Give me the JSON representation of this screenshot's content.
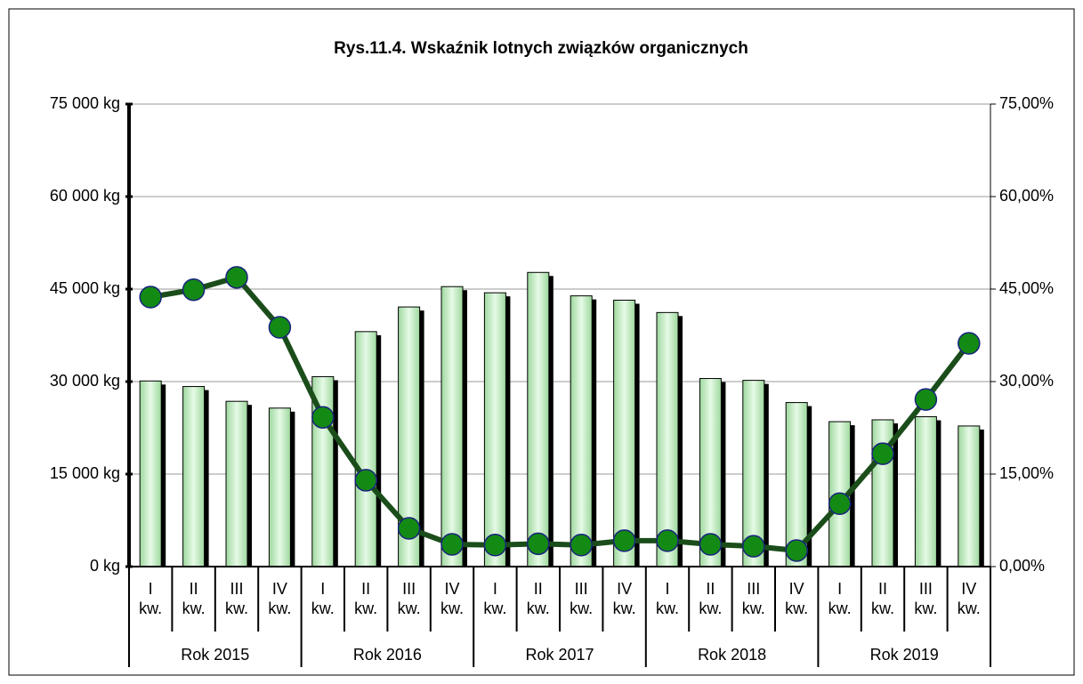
{
  "chart_data": {
    "type": "bar_line",
    "title": "Rys.11.4. Wskaźnik lotnych związków organicznych",
    "categories": [
      "I kw.",
      "II kw.",
      "III kw.",
      "IV kw.",
      "I kw.",
      "II kw.",
      "III kw.",
      "IV kw.",
      "I kw.",
      "II kw.",
      "III kw.",
      "IV kw.",
      "I kw.",
      "II kw.",
      "III kw.",
      "IV kw.",
      "I kw.",
      "II kw.",
      "III kw.",
      "IV kw."
    ],
    "groups": [
      "Rok 2015",
      "Rok 2016",
      "Rok 2017",
      "Rok 2018",
      "Rok 2019"
    ],
    "series": [
      {
        "type": "bar",
        "color": "#c8f0c8",
        "values": [
          30100,
          29200,
          26800,
          25700,
          30800,
          38100,
          42100,
          45400,
          44400,
          47700,
          43900,
          43200,
          41200,
          30500,
          30200,
          26600,
          23500,
          23800,
          24300,
          22800
        ]
      },
      {
        "type": "line",
        "axis": "y2",
        "color": "#1a4d1a",
        "marker_color": "#138a13",
        "values": [
          43.7,
          44.9,
          46.9,
          38.8,
          24.2,
          14.0,
          6.2,
          3.6,
          3.5,
          3.7,
          3.5,
          4.2,
          4.2,
          3.6,
          3.3,
          2.6,
          10.2,
          18.3,
          27.1,
          36.2
        ]
      }
    ],
    "ylim": [
      0,
      75000
    ],
    "yticks": [
      {
        "value": 0,
        "label": "0 kg"
      },
      {
        "value": 15000,
        "label": "15 000 kg"
      },
      {
        "value": 30000,
        "label": "30 000 kg"
      },
      {
        "value": 45000,
        "label": "45 000 kg"
      },
      {
        "value": 60000,
        "label": "60 000 kg"
      },
      {
        "value": 75000,
        "label": "75 000 kg"
      }
    ],
    "y2lim": [
      0,
      75
    ],
    "y2ticks": [
      {
        "value": 0,
        "label": "0,00%"
      },
      {
        "value": 15,
        "label": "15,00%"
      },
      {
        "value": 30,
        "label": "30,00%"
      },
      {
        "value": 45,
        "label": "45,00%"
      },
      {
        "value": 60,
        "label": "60,00%"
      },
      {
        "value": 75,
        "label": "75,00%"
      }
    ],
    "grid": true
  }
}
